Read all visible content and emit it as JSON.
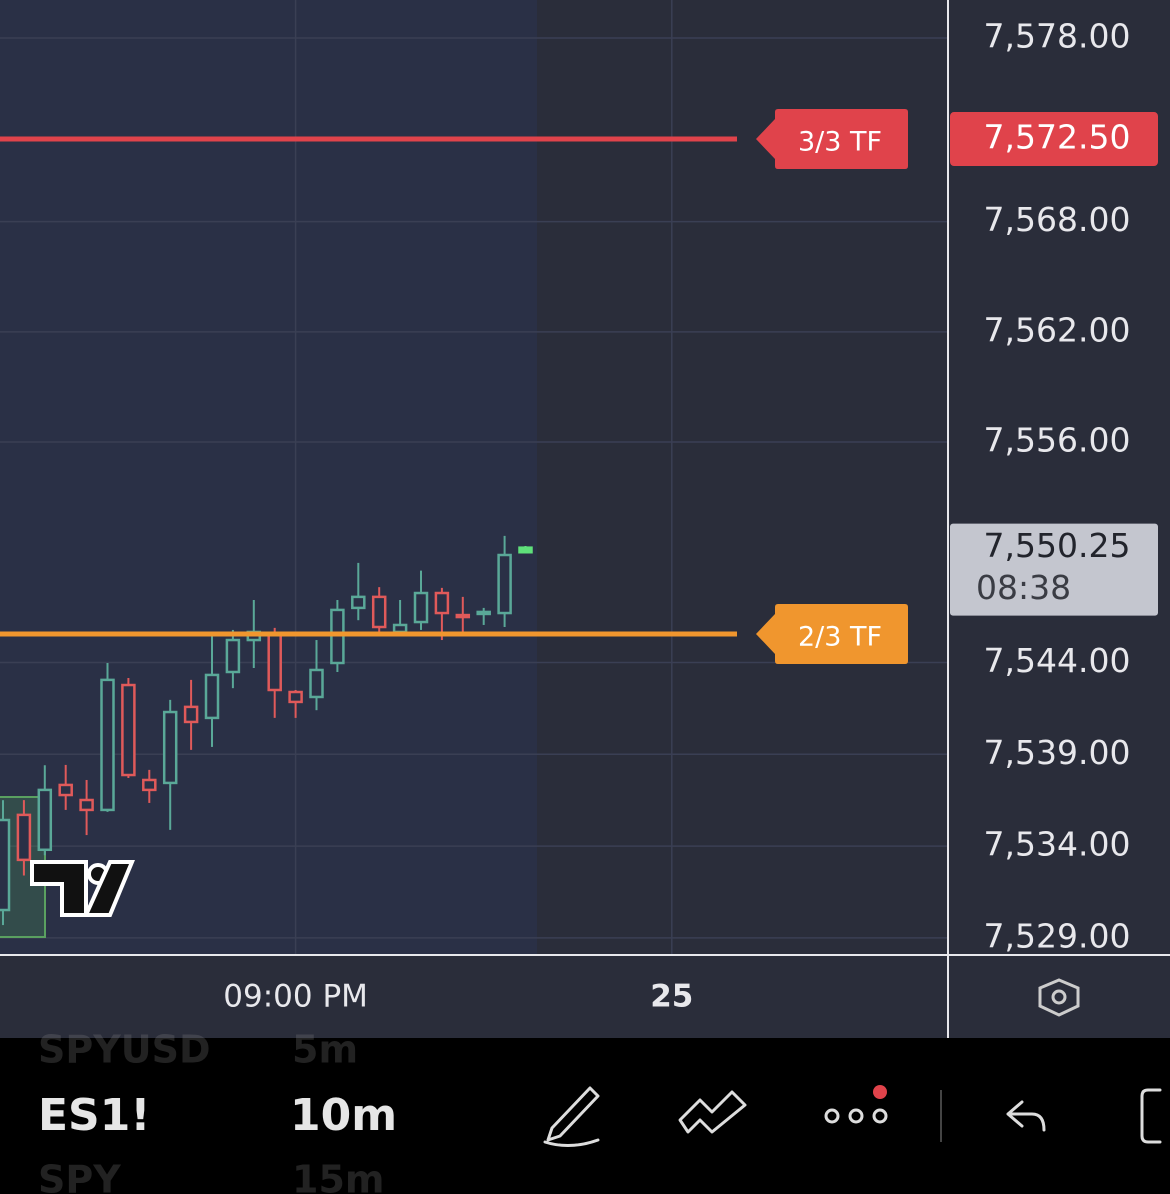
{
  "chart_data": {
    "type": "candlestick",
    "categories": [
      null,
      null,
      null,
      null,
      null,
      null,
      null,
      null,
      null,
      null,
      null,
      null,
      null,
      null,
      "09:00 PM",
      null,
      null,
      null,
      null,
      null,
      null,
      null,
      null,
      null,
      null,
      null,
      null,
      null,
      null,
      null,
      null,
      null,
      "25"
    ],
    "open": [
      7530.52,
      7535.7,
      7533.8,
      7537.33,
      7536.51,
      7535.97,
      7542.77,
      7537.6,
      7537.44,
      7541.58,
      7540.98,
      7543.48,
      7545.22,
      7545.55,
      7542.39,
      7542.12,
      7543.97,
      7546.97,
      7547.57,
      7545.66,
      7546.2,
      7547.78,
      7546.58,
      7546.64,
      7546.69,
      7550.0,
      null,
      null,
      null,
      null,
      null,
      null,
      null
    ],
    "high": [
      7536.5,
      7536.5,
      7538.4,
      7538.42,
      7537.6,
      7543.97,
      7543.15,
      7538.15,
      7541.96,
      7543.05,
      7545.44,
      7545.77,
      7547.4,
      7545.88,
      7542.5,
      7545.22,
      7547.4,
      7549.42,
      7548.1,
      7547.4,
      7549.0,
      7548.06,
      7547.57,
      7546.97,
      7550.89,
      7550.34,
      null,
      null,
      null,
      null,
      null,
      null,
      null
    ],
    "low": [
      7529.7,
      7532.4,
      7533.5,
      7535.97,
      7534.6,
      7535.86,
      7537.71,
      7536.35,
      7534.88,
      7539.24,
      7539.4,
      7542.6,
      7543.7,
      7540.98,
      7540.98,
      7541.4,
      7543.48,
      7546.3,
      7545.44,
      7545.44,
      7545.77,
      7545.22,
      7545.66,
      7546.04,
      7545.93,
      7550.0,
      null,
      null,
      null,
      null,
      null,
      null,
      null
    ],
    "close": [
      7535.42,
      7533.25,
      7537.06,
      7536.78,
      7535.97,
      7543.05,
      7537.87,
      7537.06,
      7541.3,
      7540.76,
      7543.32,
      7545.22,
      7545.66,
      7542.5,
      7541.85,
      7543.59,
      7546.86,
      7547.57,
      7545.93,
      7546.04,
      7547.78,
      7546.69,
      7546.48,
      7546.75,
      7549.85,
      7550.25,
      null,
      null,
      null,
      null,
      null,
      null,
      null
    ],
    "up_color": "#5aa898",
    "down_color": "#e05a5a",
    "last_bar_color": "#5fe07a",
    "ylim": [
      7528.07,
      7580.07
    ],
    "yticks": [
      {
        "value": 7578,
        "label": "7,578.00"
      },
      {
        "value": 7568,
        "label": "7,568.00"
      },
      {
        "value": 7562,
        "label": "7,562.00"
      },
      {
        "value": 7556,
        "label": "7,556.00"
      },
      {
        "value": 7544,
        "label": "7,544.00"
      },
      {
        "value": 7539,
        "label": "7,539.00"
      },
      {
        "value": 7534,
        "label": "7,534.00"
      },
      {
        "value": 7529,
        "label": "7,529.00"
      }
    ],
    "grid": true,
    "levels": [
      {
        "label": "3/3 TF",
        "value": 7572.5,
        "value_label": "7,572.50",
        "color": "#e0434b"
      },
      {
        "label": "2/3 TF",
        "value": 7545.55,
        "color": "#f0962e"
      }
    ],
    "last_price": {
      "value": 7550.25,
      "label": "7,550.25",
      "countdown": "08:38"
    }
  },
  "toolbar": {
    "symbol": "ES1!",
    "interval": "10m",
    "prev_symbol": "SPYUSD",
    "prev_interval": "5m",
    "next_symbol": "SPY",
    "next_interval": "15m"
  }
}
